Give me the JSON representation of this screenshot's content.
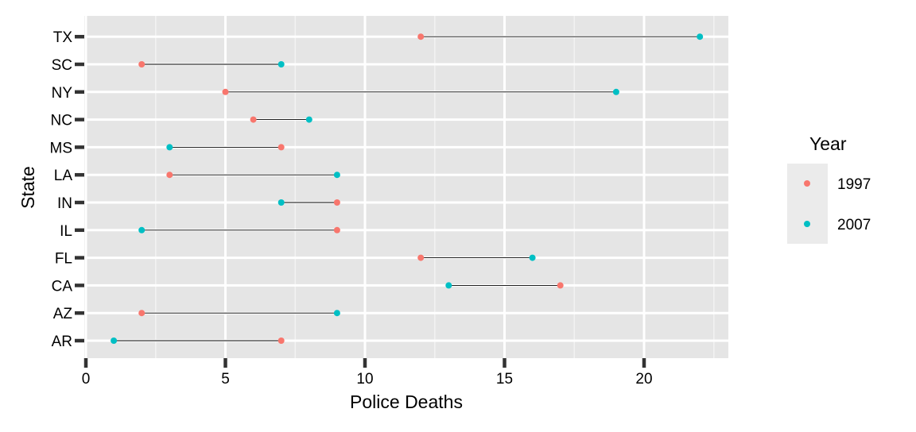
{
  "chart_data": {
    "type": "dumbbell",
    "xlabel": "Police Deaths",
    "ylabel": "State",
    "xlim": [
      -0.1,
      23
    ],
    "x_ticks": [
      0,
      5,
      10,
      15,
      20
    ],
    "categories": [
      "AR",
      "AZ",
      "CA",
      "FL",
      "IL",
      "IN",
      "LA",
      "MS",
      "NC",
      "NY",
      "SC",
      "TX"
    ],
    "series": [
      {
        "name": "1997",
        "color": "#F8766D",
        "values": [
          7,
          2,
          17,
          12,
          9,
          9,
          3,
          7,
          6,
          5,
          2,
          12
        ]
      },
      {
        "name": "2007",
        "color": "#00BFC4",
        "values": [
          1,
          9,
          13,
          16,
          2,
          7,
          9,
          3,
          8,
          19,
          7,
          22
        ]
      }
    ],
    "legend": {
      "title": "Year",
      "position": "right"
    },
    "grid": true,
    "background": "#E5E5E5"
  }
}
